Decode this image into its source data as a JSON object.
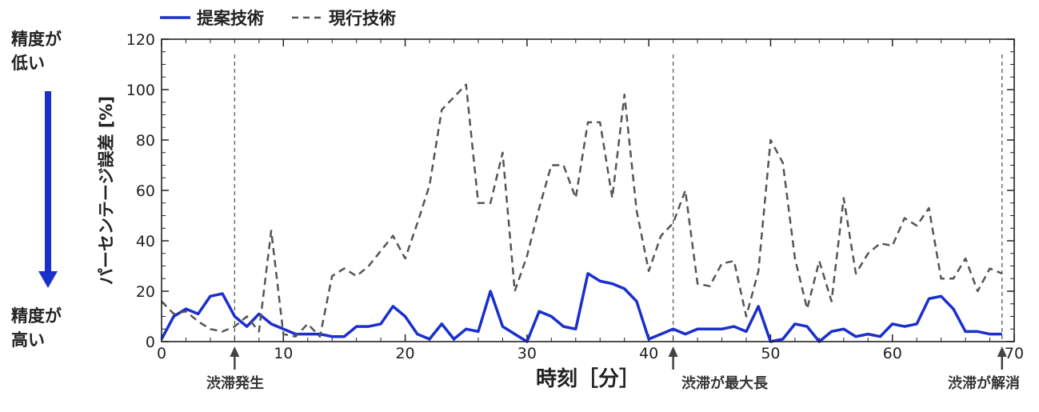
{
  "chart_data": {
    "type": "line",
    "xlabel": "時刻［分］",
    "ylabel": "パーセンテージ誤差 [%]",
    "xlim": [
      0,
      70
    ],
    "ylim": [
      0,
      120
    ],
    "x_ticks": [
      "0",
      "10",
      "20",
      "30",
      "40",
      "50",
      "60",
      "70"
    ],
    "y_ticks": [
      "0",
      "20",
      "40",
      "60",
      "80",
      "100",
      "120"
    ],
    "legend": {
      "position": "top-left"
    },
    "series": [
      {
        "name": "提案技術",
        "color": "#1a2fcc",
        "style": "solid",
        "x": [
          0,
          1,
          2,
          3,
          4,
          5,
          6,
          7,
          8,
          9,
          10,
          11,
          12,
          13,
          14,
          15,
          16,
          17,
          18,
          19,
          20,
          21,
          22,
          23,
          24,
          25,
          26,
          27,
          28,
          29,
          30,
          31,
          32,
          33,
          34,
          35,
          36,
          37,
          38,
          39,
          40,
          41,
          42,
          43,
          44,
          45,
          46,
          47,
          48,
          49,
          50,
          51,
          52,
          53,
          54,
          55,
          56,
          57,
          58,
          59,
          60,
          61,
          62,
          63,
          64,
          65,
          66,
          67,
          68,
          69
        ],
        "values": [
          1,
          10,
          13,
          11,
          18,
          19,
          10,
          6,
          11,
          7,
          5,
          3,
          3,
          3,
          2,
          2,
          6,
          6,
          7,
          14,
          10,
          3,
          1,
          7,
          1,
          5,
          4,
          20,
          6,
          3,
          0,
          12,
          10,
          6,
          5,
          27,
          24,
          23,
          21,
          16,
          1,
          3,
          5,
          3,
          5,
          5,
          5,
          6,
          4,
          14,
          0,
          1,
          7,
          6,
          0,
          4,
          5,
          2,
          3,
          2,
          7,
          6,
          7,
          17,
          18,
          13,
          4,
          4,
          3,
          3
        ]
      },
      {
        "name": "現行技術",
        "color": "#555555",
        "style": "dashed",
        "x": [
          0,
          1,
          2,
          3,
          4,
          5,
          6,
          7,
          8,
          9,
          10,
          11,
          12,
          13,
          14,
          15,
          16,
          17,
          18,
          19,
          20,
          21,
          22,
          23,
          24,
          25,
          26,
          27,
          28,
          29,
          30,
          31,
          32,
          33,
          34,
          35,
          36,
          37,
          38,
          39,
          40,
          41,
          42,
          43,
          44,
          45,
          46,
          47,
          48,
          49,
          50,
          51,
          52,
          53,
          54,
          55,
          56,
          57,
          58,
          59,
          60,
          61,
          62,
          63,
          64,
          65,
          66,
          67,
          68,
          69
        ],
        "values": [
          16,
          11,
          12,
          8,
          5,
          4,
          6,
          10,
          4,
          44,
          3,
          2,
          7,
          2,
          26,
          29,
          26,
          30,
          36,
          42,
          33,
          47,
          62,
          92,
          97,
          102,
          55,
          55,
          75,
          20,
          34,
          53,
          70,
          70,
          57,
          87,
          87,
          57,
          98,
          52,
          28,
          42,
          47,
          60,
          23,
          22,
          31,
          32,
          10,
          28,
          80,
          71,
          33,
          13,
          32,
          16,
          57,
          27,
          35,
          39,
          38,
          49,
          46,
          53,
          25,
          25,
          33,
          20,
          29,
          27
        ]
      }
    ],
    "vertical_markers": [
      {
        "x": 6,
        "label": "渋滞発生"
      },
      {
        "x": 42,
        "label": "渋滞が最大長"
      },
      {
        "x": 69,
        "label": "渋滞が解消"
      }
    ],
    "side_annotations": {
      "top": "精度が低い",
      "bottom": "精度が高い"
    }
  },
  "side": {
    "top_line1": "精度が",
    "top_line2": "低い",
    "bottom_line1": "精度が",
    "bottom_line2": "高い"
  }
}
